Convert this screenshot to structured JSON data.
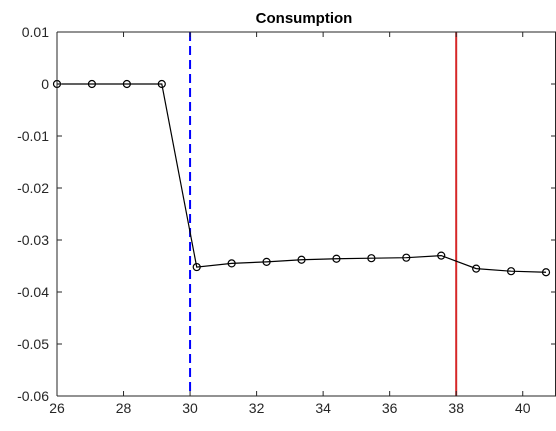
{
  "chart_data": {
    "type": "line",
    "title": "Consumption",
    "xlabel": "",
    "ylabel": "",
    "xlim": [
      26,
      41
    ],
    "ylim": [
      -0.06,
      0.01
    ],
    "x_ticks": [
      26,
      28,
      30,
      32,
      34,
      36,
      38,
      40
    ],
    "x_tick_labels": [
      "26",
      "28",
      "30",
      "32",
      "34",
      "36",
      "38",
      "40"
    ],
    "y_ticks": [
      0.01,
      0,
      -0.01,
      -0.02,
      -0.03,
      -0.04,
      -0.05,
      -0.06
    ],
    "y_tick_labels": [
      "0.01",
      "0",
      "-0.01",
      "-0.02",
      "-0.03",
      "-0.04",
      "-0.05",
      "-0.06"
    ],
    "grid": false,
    "series": [
      {
        "color": "#000000",
        "marker": "circle",
        "x": [
          26.0,
          27.05,
          28.1,
          29.15,
          30.2,
          31.25,
          32.3,
          33.35,
          34.4,
          35.45,
          36.5,
          37.55,
          38.6,
          39.65,
          40.7
        ],
        "y": [
          0,
          0,
          0,
          0,
          -0.0352,
          -0.0345,
          -0.0342,
          -0.0338,
          -0.0336,
          -0.0335,
          -0.0334,
          -0.033,
          -0.0355,
          -0.036,
          -0.0362
        ]
      }
    ],
    "vertical_lines": [
      {
        "x": 30,
        "color": "#0000ff",
        "style": "dashed"
      },
      {
        "x": 38,
        "color": "#d62728",
        "style": "solid"
      }
    ]
  }
}
